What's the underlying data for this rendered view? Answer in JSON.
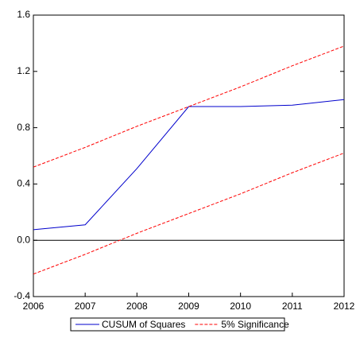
{
  "chart_data": {
    "type": "line",
    "categories": [
      "2006",
      "2007",
      "2008",
      "2009",
      "2010",
      "2011",
      "2012"
    ],
    "series": [
      {
        "name": "CUSUM of Squares",
        "color": "#0000cc",
        "dash": false,
        "values": [
          0.075,
          0.11,
          0.51,
          0.95,
          0.95,
          0.96,
          1.0
        ]
      },
      {
        "name": "5% Significance",
        "color": "#ff0000",
        "dash": true,
        "values": [
          0.52,
          0.66,
          0.81,
          0.95,
          1.09,
          1.24,
          1.38
        ]
      },
      {
        "name": "5% Significance",
        "color": "#ff0000",
        "dash": true,
        "values": [
          -0.24,
          -0.1,
          0.05,
          0.19,
          0.33,
          0.48,
          0.62
        ]
      }
    ],
    "ylim": [
      -0.4,
      1.6
    ],
    "yticks": [
      -0.4,
      {
        "value": 0,
        "label": "0.0"
      },
      0.4,
      0.8,
      1.2,
      1.6
    ],
    "zero_line": true,
    "legend": "bottom"
  }
}
